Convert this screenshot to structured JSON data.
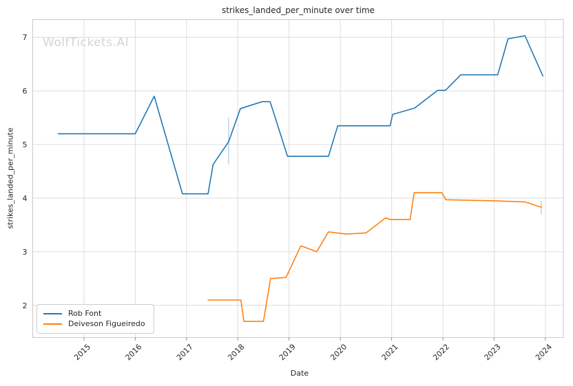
{
  "figure": {
    "title": "strikes_landed_per_minute over time",
    "watermark": "WolfTickets.AI"
  },
  "chart_data": {
    "type": "line",
    "title": "strikes_landed_per_minute over time",
    "xlabel": "Date",
    "ylabel": "strikes_landed_per_minute",
    "xlim": [
      2014.0,
      2024.35
    ],
    "ylim": [
      1.4,
      7.33
    ],
    "xticks": [
      2015,
      2016,
      2017,
      2018,
      2019,
      2020,
      2021,
      2022,
      2023,
      2024
    ],
    "yticks": [
      2,
      3,
      4,
      5,
      6,
      7
    ],
    "grid": true,
    "legend_position": "lower left",
    "colors": {
      "grid": "#dcdcdc",
      "spine": "#c9c9c9",
      "tick_mark": "#8f8f8f",
      "text": "#262626"
    },
    "series": [
      {
        "name": "Rob Font",
        "color": "#1f77b4",
        "points": [
          [
            2014.5,
            5.2
          ],
          [
            2016.0,
            5.2
          ],
          [
            2016.37,
            5.9
          ],
          [
            2016.92,
            4.08
          ],
          [
            2017.42,
            4.08
          ],
          [
            2017.52,
            4.63
          ],
          [
            2017.82,
            5.05
          ],
          [
            2018.05,
            5.67
          ],
          [
            2018.48,
            5.8
          ],
          [
            2018.63,
            5.8
          ],
          [
            2018.97,
            4.78
          ],
          [
            2019.77,
            4.78
          ],
          [
            2019.95,
            5.35
          ],
          [
            2020.97,
            5.35
          ],
          [
            2021.02,
            5.56
          ],
          [
            2021.45,
            5.68
          ],
          [
            2021.9,
            6.01
          ],
          [
            2022.05,
            6.01
          ],
          [
            2022.35,
            6.3
          ],
          [
            2023.07,
            6.3
          ],
          [
            2023.27,
            6.97
          ],
          [
            2023.6,
            7.03
          ],
          [
            2023.95,
            6.28
          ]
        ]
      },
      {
        "name": "Deiveson Figueiredo",
        "color": "#ff7f0e",
        "points": [
          [
            2017.42,
            2.1
          ],
          [
            2018.06,
            2.1
          ],
          [
            2018.12,
            1.7
          ],
          [
            2018.5,
            1.7
          ],
          [
            2018.64,
            2.5
          ],
          [
            2018.94,
            2.52
          ],
          [
            2019.23,
            3.11
          ],
          [
            2019.54,
            3.0
          ],
          [
            2019.77,
            3.37
          ],
          [
            2020.1,
            3.33
          ],
          [
            2020.5,
            3.35
          ],
          [
            2020.88,
            3.63
          ],
          [
            2020.98,
            3.6
          ],
          [
            2021.36,
            3.6
          ],
          [
            2021.44,
            4.1
          ],
          [
            2021.98,
            4.1
          ],
          [
            2022.06,
            3.97
          ],
          [
            2022.97,
            3.95
          ],
          [
            2023.6,
            3.93
          ],
          [
            2023.92,
            3.83
          ]
        ]
      }
    ],
    "range_markers": [
      {
        "series": "Rob Font",
        "color": "#1f77b4",
        "opacity": 0.3,
        "x": 2017.82,
        "y1": 4.63,
        "y2": 5.5
      },
      {
        "series": "Deiveson Figueiredo",
        "color": "#ff7f0e",
        "opacity": 0.5,
        "x": 2023.92,
        "y1": 3.7,
        "y2": 3.95
      }
    ]
  }
}
